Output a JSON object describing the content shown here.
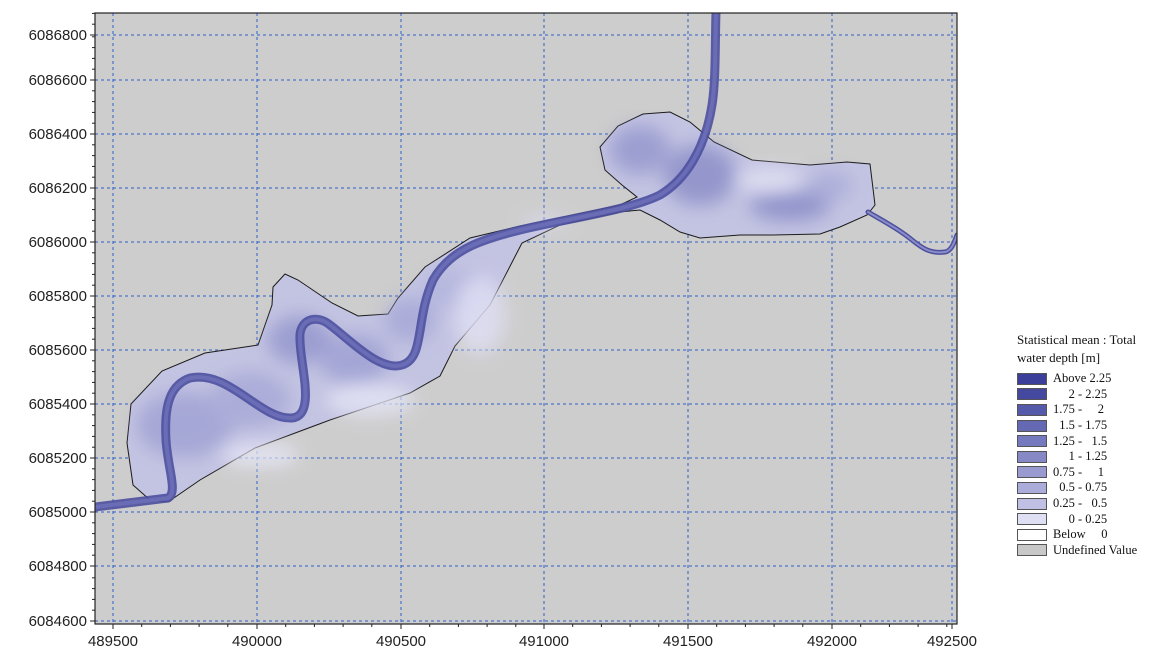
{
  "map": {
    "y_ticks": [
      "6084600",
      "6084800",
      "6085000",
      "6085200",
      "6085400",
      "6085600",
      "6085800",
      "6086000",
      "6086200",
      "6086400",
      "6086600",
      "6086800"
    ],
    "x_ticks": [
      "489500",
      "490000",
      "490500",
      "491000",
      "491500",
      "492000",
      "492500"
    ],
    "colors": {
      "background": "#cdcdcd",
      "grid": "#2e5fc8",
      "land_undefined": "#c8c8c8"
    }
  },
  "legend": {
    "title_line1": "Statistical mean : Total",
    "title_line2": "water depth [m]",
    "items": [
      {
        "label": "Above 2.25",
        "color": "#3b3f9a"
      },
      {
        "label": "     2 - 2.25",
        "color": "#44499f"
      },
      {
        "label": "1.75 -     2",
        "color": "#5559aa"
      },
      {
        "label": "  1.5 - 1.75",
        "color": "#6569b4"
      },
      {
        "label": "1.25 -   1.5",
        "color": "#7579bd"
      },
      {
        "label": "     1 - 1.25",
        "color": "#8689c6"
      },
      {
        "label": "0.75 -     1",
        "color": "#989ad0"
      },
      {
        "label": "  0.5 - 0.75",
        "color": "#abacda"
      },
      {
        "label": "0.25 -   0.5",
        "color": "#bfc0e4"
      },
      {
        "label": "     0 - 0.25",
        "color": "#dfdff3"
      },
      {
        "label": "Below     0",
        "color": "#ffffff"
      },
      {
        "label": "Undefined Value",
        "color": "#c8c8c8"
      }
    ]
  }
}
